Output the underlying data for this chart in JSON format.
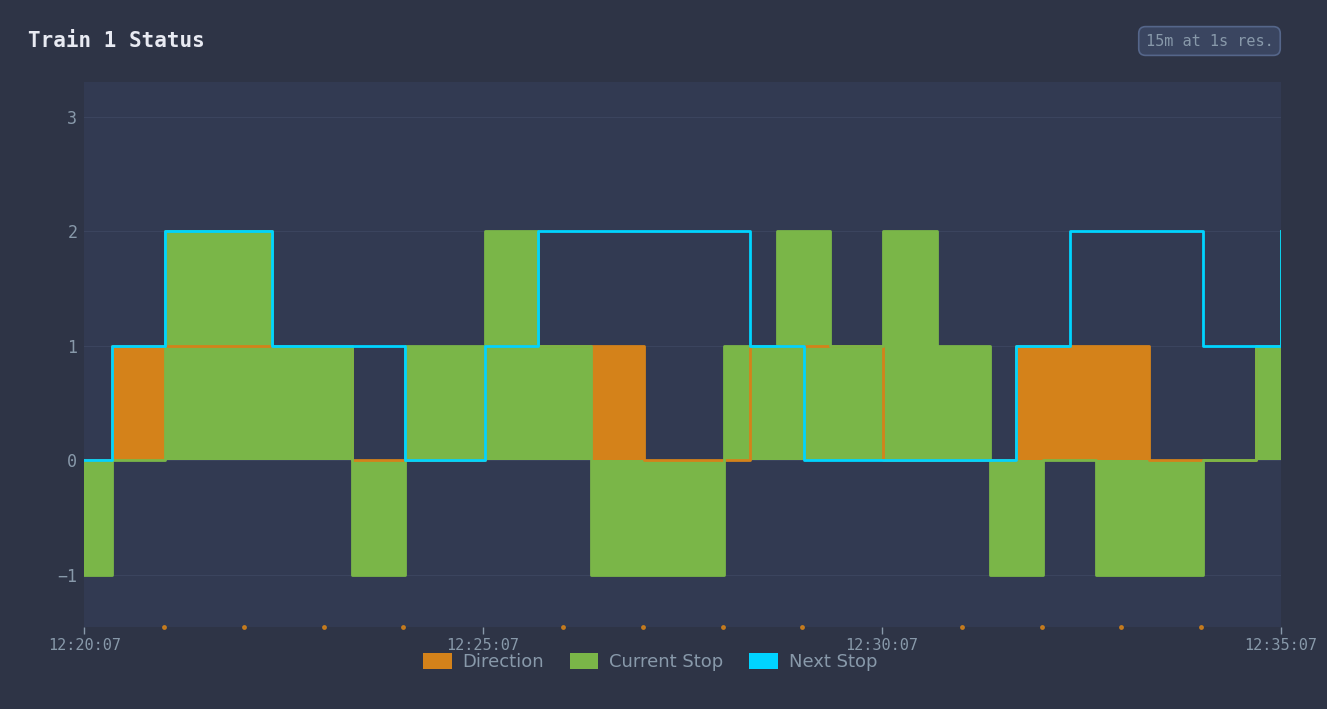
{
  "title": "Train 1 Status",
  "info_label": "15m at 1s res.",
  "bg_color": "#2e3446",
  "plot_bg_color": "#323a52",
  "header_bg_color": "#252d3e",
  "badge_bg_color": "#3a4560",
  "badge_edge_color": "#55668a",
  "title_color": "#e8eaf2",
  "info_color": "#8899aa",
  "tick_color": "#8899aa",
  "grid_color": "#3d4660",
  "ylim": [
    -1.45,
    3.3
  ],
  "yticks": [
    -1,
    0,
    1,
    2,
    3
  ],
  "xlabels": [
    "12:20:07",
    "12:25:07",
    "12:30:07",
    "12:35:07"
  ],
  "xlabels_x": [
    0,
    300,
    600,
    900
  ],
  "xmin": 0,
  "xmax": 900,
  "series_order": [
    "direction",
    "current_stop",
    "next_stop"
  ],
  "series": {
    "current_stop": {
      "color": "#7ab648",
      "label": "Current Stop",
      "fill": true,
      "line": true,
      "x": [
        0,
        20,
        21,
        60,
        61,
        140,
        141,
        200,
        201,
        240,
        241,
        300,
        301,
        340,
        341,
        380,
        381,
        420,
        421,
        480,
        481,
        520,
        521,
        560,
        561,
        600,
        601,
        640,
        641,
        680,
        681,
        720,
        721,
        760,
        761,
        800,
        801,
        840,
        841,
        880,
        881,
        900
      ],
      "y": [
        -1,
        -1,
        0,
        0,
        2,
        2,
        1,
        1,
        -1,
        -1,
        1,
        1,
        2,
        2,
        1,
        1,
        -1,
        -1,
        -1,
        -1,
        1,
        1,
        2,
        2,
        1,
        1,
        2,
        2,
        1,
        1,
        -1,
        -1,
        0,
        0,
        -1,
        -1,
        -1,
        -1,
        0,
        0,
        1,
        2
      ]
    },
    "direction": {
      "color": "#d4821a",
      "label": "Direction",
      "fill": true,
      "line": true,
      "x": [
        0,
        20,
        21,
        200,
        201,
        300,
        301,
        420,
        421,
        500,
        501,
        600,
        601,
        700,
        701,
        800,
        801,
        880,
        881,
        900
      ],
      "y": [
        0,
        0,
        1,
        1,
        0,
        0,
        1,
        1,
        0,
        0,
        1,
        1,
        0,
        0,
        1,
        1,
        0,
        0,
        1,
        1
      ]
    },
    "next_stop": {
      "color": "#00d4ff",
      "label": "Next Stop",
      "fill": false,
      "line": true,
      "x": [
        0,
        20,
        21,
        60,
        61,
        140,
        141,
        240,
        241,
        300,
        301,
        340,
        341,
        500,
        501,
        540,
        541,
        700,
        701,
        740,
        741,
        840,
        841,
        900
      ],
      "y": [
        0,
        0,
        1,
        1,
        2,
        2,
        1,
        1,
        0,
        0,
        1,
        1,
        2,
        2,
        1,
        1,
        0,
        0,
        1,
        1,
        2,
        2,
        1,
        2
      ]
    }
  }
}
